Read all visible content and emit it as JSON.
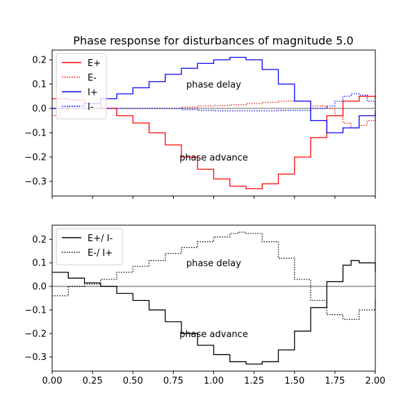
{
  "chart_data": [
    {
      "type": "line",
      "title": "Phase response for disturbances of magnitude 5.0",
      "xlabel": "",
      "ylabel": "",
      "xlim": [
        0,
        2
      ],
      "ylim": [
        -0.36,
        0.24
      ],
      "yticks": [
        -0.3,
        -0.2,
        -0.1,
        0.0,
        0.1,
        0.2
      ],
      "ytick_labels": [
        "−0.3",
        "−0.2",
        "−0.1",
        "0.0",
        "0.1",
        "0.2"
      ],
      "show_xtick_labels": false,
      "legend_placement": "upper-left",
      "reference_line_y": 0,
      "annotations": [
        {
          "text": "phase delay",
          "x": 1.0,
          "y": 0.1
        },
        {
          "text": "phase advance",
          "x": 1.0,
          "y": -0.2
        }
      ],
      "series": [
        {
          "name": "E+",
          "color": "#ff0000",
          "style": "solid",
          "x": [
            0.0,
            0.1,
            0.2,
            0.3,
            0.4,
            0.5,
            0.6,
            0.7,
            0.8,
            0.9,
            1.0,
            1.1,
            1.2,
            1.3,
            1.4,
            1.5,
            1.6,
            1.7,
            1.8,
            1.9,
            2.0
          ],
          "y": [
            0.04,
            0.035,
            0.02,
            0.0,
            -0.03,
            -0.06,
            -0.1,
            -0.15,
            -0.2,
            -0.25,
            -0.29,
            -0.32,
            -0.33,
            -0.31,
            -0.27,
            -0.2,
            -0.12,
            -0.03,
            0.03,
            0.05,
            0.04
          ]
        },
        {
          "name": "E-",
          "color": "#ff0000",
          "style": "dotted",
          "x": [
            0.0,
            0.05,
            0.1,
            0.2,
            0.4,
            0.6,
            0.8,
            0.9,
            1.0,
            1.1,
            1.2,
            1.3,
            1.4,
            1.5,
            1.6,
            1.7,
            1.75,
            1.8,
            1.85,
            1.9,
            1.95,
            2.0
          ],
          "y": [
            -0.03,
            -0.01,
            0.0,
            0.0,
            0.0,
            0.0,
            0.005,
            0.01,
            0.012,
            0.015,
            0.02,
            0.025,
            0.03,
            0.03,
            0.01,
            0.0,
            -0.03,
            -0.06,
            -0.08,
            -0.07,
            -0.05,
            -0.02
          ]
        },
        {
          "name": "I+",
          "color": "#0000ff",
          "style": "solid",
          "x": [
            0.0,
            0.1,
            0.2,
            0.3,
            0.4,
            0.5,
            0.6,
            0.7,
            0.8,
            0.9,
            1.0,
            1.1,
            1.2,
            1.3,
            1.4,
            1.5,
            1.6,
            1.7,
            1.8,
            1.9,
            2.0
          ],
          "y": [
            0.0,
            0.01,
            0.02,
            0.04,
            0.06,
            0.085,
            0.11,
            0.14,
            0.165,
            0.185,
            0.2,
            0.21,
            0.2,
            0.16,
            0.1,
            0.03,
            -0.05,
            -0.1,
            -0.08,
            -0.03,
            -0.01
          ]
        },
        {
          "name": "I-",
          "color": "#0000ff",
          "style": "dotted",
          "x": [
            0.0,
            0.2,
            0.4,
            0.6,
            0.8,
            0.9,
            1.0,
            1.2,
            1.4,
            1.6,
            1.7,
            1.75,
            1.8,
            1.85,
            1.9,
            1.95,
            2.0
          ],
          "y": [
            0.0,
            0.0,
            0.0,
            0.0,
            -0.005,
            -0.008,
            -0.01,
            -0.01,
            -0.008,
            0.0,
            0.01,
            0.03,
            0.05,
            0.06,
            0.055,
            0.03,
            0.0
          ]
        }
      ]
    },
    {
      "type": "line",
      "title": "",
      "xlabel": "",
      "ylabel": "",
      "xlim": [
        0,
        2
      ],
      "ylim": [
        -0.36,
        0.26
      ],
      "xticks": [
        0.0,
        0.25,
        0.5,
        0.75,
        1.0,
        1.25,
        1.5,
        1.75,
        2.0
      ],
      "xtick_labels": [
        "0.00",
        "0.25",
        "0.50",
        "0.75",
        "1.00",
        "1.25",
        "1.50",
        "1.75",
        "2.00"
      ],
      "yticks": [
        -0.3,
        -0.2,
        -0.1,
        0.0,
        0.1,
        0.2
      ],
      "ytick_labels": [
        "−0.3",
        "−0.2",
        "−0.1",
        "0.0",
        "0.1",
        "0.2"
      ],
      "show_xtick_labels": true,
      "legend_placement": "upper-left",
      "reference_line_y": 0,
      "annotations": [
        {
          "text": "phase delay",
          "x": 1.0,
          "y": 0.1
        },
        {
          "text": "phase advance",
          "x": 1.0,
          "y": -0.2
        }
      ],
      "series": [
        {
          "name": "E+/ I-",
          "color": "#000000",
          "style": "solid",
          "x": [
            0.0,
            0.1,
            0.2,
            0.3,
            0.4,
            0.5,
            0.6,
            0.7,
            0.8,
            0.9,
            1.0,
            1.1,
            1.2,
            1.3,
            1.4,
            1.5,
            1.6,
            1.7,
            1.8,
            1.85,
            1.9,
            2.0
          ],
          "y": [
            0.06,
            0.035,
            0.015,
            0.0,
            -0.03,
            -0.06,
            -0.1,
            -0.15,
            -0.2,
            -0.25,
            -0.29,
            -0.32,
            -0.33,
            -0.32,
            -0.27,
            -0.19,
            -0.09,
            0.02,
            0.09,
            0.11,
            0.1,
            0.06
          ]
        },
        {
          "name": "E-/ I+",
          "color": "#000000",
          "style": "dotted",
          "x": [
            0.0,
            0.1,
            0.2,
            0.3,
            0.4,
            0.5,
            0.6,
            0.7,
            0.8,
            0.9,
            1.0,
            1.1,
            1.15,
            1.2,
            1.3,
            1.4,
            1.5,
            1.6,
            1.7,
            1.8,
            1.9,
            2.0
          ],
          "y": [
            -0.04,
            0.0,
            0.01,
            0.03,
            0.06,
            0.085,
            0.11,
            0.14,
            0.165,
            0.19,
            0.21,
            0.225,
            0.23,
            0.225,
            0.19,
            0.12,
            0.03,
            -0.06,
            -0.12,
            -0.14,
            -0.1,
            -0.05
          ]
        }
      ]
    }
  ]
}
